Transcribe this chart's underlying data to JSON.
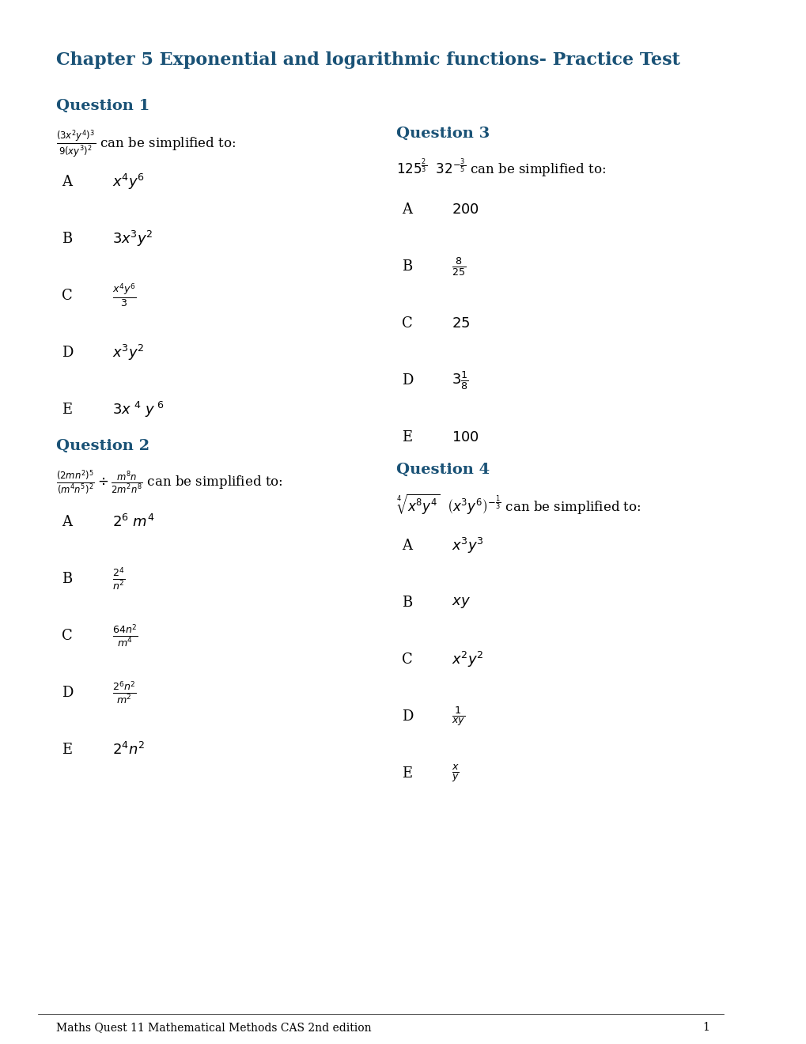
{
  "title": "Chapter 5 Exponential and logarithmic functions- Practice Test",
  "title_color": "#1a5276",
  "title_fontsize": 16,
  "background_color": "#ffffff",
  "footer_text": "Maths Quest 11 Mathematical Methods CAS 2nd edition",
  "footer_page": "1",
  "questions": [
    {
      "label": "Question 1",
      "question_latex": "$\\frac{(3x^2y^4)^3}{9(xy^3)^2}$ can be simplified to:",
      "options": [
        {
          "letter": "A",
          "latex": "$x^4y^6$"
        },
        {
          "letter": "B",
          "latex": "$3x^3y^2$"
        },
        {
          "letter": "C",
          "latex": "$\\frac{x^4y^6}{3}$"
        },
        {
          "letter": "D",
          "latex": "$x^3y^2$"
        },
        {
          "letter": "E",
          "latex": "$3x^{\\ 4}\\ y^{\\ 6}$"
        }
      ],
      "col": 0
    },
    {
      "label": "Question 2",
      "question_latex": "$\\frac{(2mn^2)^5}{(m^4n^5)^2} \\div \\frac{m^8n}{2m^2n^8}$ can be simplified to:",
      "options": [
        {
          "letter": "A",
          "latex": "$2^6\\ m^4$"
        },
        {
          "letter": "B",
          "latex": "$\\frac{2^4}{n^2}$"
        },
        {
          "letter": "C",
          "latex": "$\\frac{64n^2}{m^4}$"
        },
        {
          "letter": "D",
          "latex": "$\\frac{2^6n^2}{m^2}$"
        },
        {
          "letter": "E",
          "latex": "$2^4n^2$"
        }
      ],
      "col": 0
    },
    {
      "label": "Question 3",
      "question_latex": "$125^{\\frac{2}{3}}\\ \\ 32^{-\\frac{3}{5}}$ can be simplified to:",
      "options": [
        {
          "letter": "A",
          "latex": "$200$"
        },
        {
          "letter": "B",
          "latex": "$\\frac{8}{25}$"
        },
        {
          "letter": "C",
          "latex": "$25$"
        },
        {
          "letter": "D",
          "latex": "$3\\frac{1}{8}$"
        },
        {
          "letter": "E",
          "latex": "$100$"
        }
      ],
      "col": 1
    },
    {
      "label": "Question 4",
      "question_latex": "$\\sqrt[4]{x^8y^4}\\ \\ \\left(x^3y^6\\right)^{-\\frac{1}{3}}$ can be simplified to:",
      "options": [
        {
          "letter": "A",
          "latex": "$x^3y^3$"
        },
        {
          "letter": "B",
          "latex": "$xy$"
        },
        {
          "letter": "C",
          "latex": "$x^2y^2$"
        },
        {
          "letter": "D",
          "latex": "$\\frac{1}{xy}$"
        },
        {
          "letter": "E",
          "latex": "$\\frac{x}{y}$"
        }
      ],
      "col": 1
    }
  ]
}
